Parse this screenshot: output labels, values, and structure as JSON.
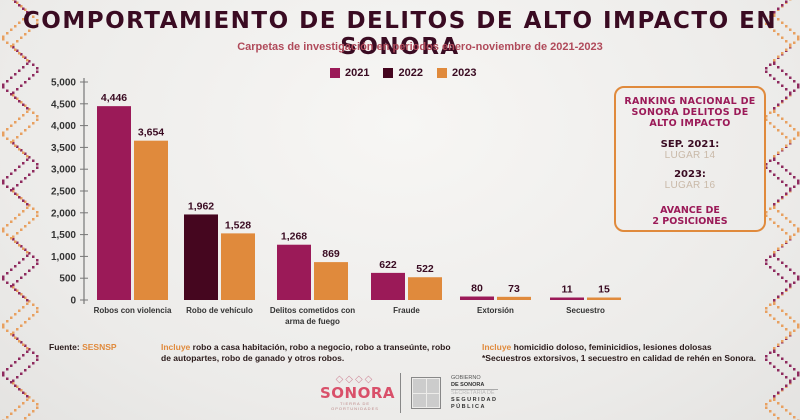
{
  "title": "COMPORTAMIENTO DE DELITOS DE ALTO IMPACTO EN SONORA",
  "subtitle": "Carpetas de investigación en periodos enero-noviembre de 2021-2023",
  "colors": {
    "2021": "#9b1a58",
    "2022": "#45061f",
    "2023": "#e08a3c",
    "title": "#3a0b22"
  },
  "legend": [
    {
      "label": "2021",
      "color": "#9b1a58"
    },
    {
      "label": "2022",
      "color": "#45061f"
    },
    {
      "label": "2023",
      "color": "#e08a3c"
    }
  ],
  "chart_data": {
    "type": "bar",
    "title": "COMPORTAMIENTO DE DELITOS DE ALTO IMPACTO EN SONORA",
    "subtitle": "Carpetas de investigación en periodos enero-noviembre de 2021-2023",
    "xlabel": "",
    "ylabel": "",
    "ylim": [
      0,
      5000
    ],
    "yticks": [
      0,
      500,
      1000,
      1500,
      2000,
      2500,
      3000,
      3500,
      4000,
      4500,
      5000
    ],
    "ytick_labels": [
      "0",
      "500",
      "1,000",
      "1,500",
      "2,000",
      "2,500",
      "3,000",
      "3,500",
      "4,000",
      "4,500",
      "5,000"
    ],
    "legend_position": "top-center",
    "grid": false,
    "categories": [
      "Robos con violencia",
      "Robo de vehículo",
      "Delitos cometidos con arma de fuego",
      "Fraude",
      "Extorsión",
      "Secuestro"
    ],
    "category_label_lines": [
      [
        "Robos con violencia"
      ],
      [
        "Robo de vehículo"
      ],
      [
        "Delitos cometidos con",
        "arma de fuego"
      ],
      [
        "Fraude"
      ],
      [
        "Extorsión"
      ],
      [
        "Secuestro"
      ]
    ],
    "groups": [
      {
        "category": "Robos con violencia",
        "bars": [
          {
            "series": "2021",
            "value": 4446,
            "label": "4,446"
          },
          {
            "series": "2023",
            "value": 3654,
            "label": "3,654"
          }
        ]
      },
      {
        "category": "Robo de vehículo",
        "bars": [
          {
            "series": "2022",
            "value": 1962,
            "label": "1,962"
          },
          {
            "series": "2023",
            "value": 1528,
            "label": "1,528"
          }
        ]
      },
      {
        "category": "Delitos cometidos con arma de fuego",
        "bars": [
          {
            "series": "2021",
            "value": 1268,
            "label": "1,268"
          },
          {
            "series": "2023",
            "value": 869,
            "label": "869"
          }
        ]
      },
      {
        "category": "Fraude",
        "bars": [
          {
            "series": "2021",
            "value": 622,
            "label": "622"
          },
          {
            "series": "2023",
            "value": 522,
            "label": "522"
          }
        ]
      },
      {
        "category": "Extorsión",
        "bars": [
          {
            "series": "2021",
            "value": 80,
            "label": "80"
          },
          {
            "series": "2023",
            "value": 73,
            "label": "73"
          }
        ]
      },
      {
        "category": "Secuestro",
        "bars": [
          {
            "series": "2021",
            "value": 11,
            "label": "11"
          },
          {
            "series": "2023",
            "value": 15,
            "label": "15"
          }
        ]
      }
    ],
    "series": [
      {
        "name": "2021",
        "values": [
          4446,
          null,
          1268,
          622,
          80,
          11
        ]
      },
      {
        "name": "2022",
        "values": [
          null,
          1962,
          null,
          null,
          null,
          null
        ]
      },
      {
        "name": "2023",
        "values": [
          3654,
          1528,
          869,
          522,
          73,
          15
        ]
      }
    ]
  },
  "ranking": {
    "title_lines": [
      "RANKING NACIONAL DE",
      "SONORA DELITOS DE",
      "ALTO IMPACTO"
    ],
    "entries": [
      {
        "label": "SEP. 2021:",
        "value": "LUGAR 14"
      },
      {
        "label": "2023:",
        "value": "LUGAR 16"
      }
    ],
    "advance_lines": [
      "AVANCE DE",
      "2 POSICIONES"
    ]
  },
  "notes": {
    "source_label": "Fuente:",
    "source_value": "SESNSP",
    "note1_highlight": "Incluye",
    "note1_line1": " robo a casa habitación, robo a negocio, robo a transeúnte, robo",
    "note1_line2": "de autopartes, robo de ganado y otros robos.",
    "note2_highlight": "Incluye",
    "note2_line1": " homicidio doloso, feminicidios, lesiones dolosas",
    "note2_line2": "*Secuestros extorsivos, 1 secuestro en calidad de rehén en Sonora."
  },
  "footer": {
    "sonora_word": "SONORA",
    "sonora_ornament": "◇◇◇◇",
    "sonora_tag": "TIERRA DE OPORTUNIDADES",
    "gov_line1": "GOBIERNO",
    "gov_line2": "DE SONORA",
    "sec_line1": "SECRETARÍA DE",
    "sec_line2": "SEGURIDAD",
    "sec_line3": "PÚBLICA"
  }
}
